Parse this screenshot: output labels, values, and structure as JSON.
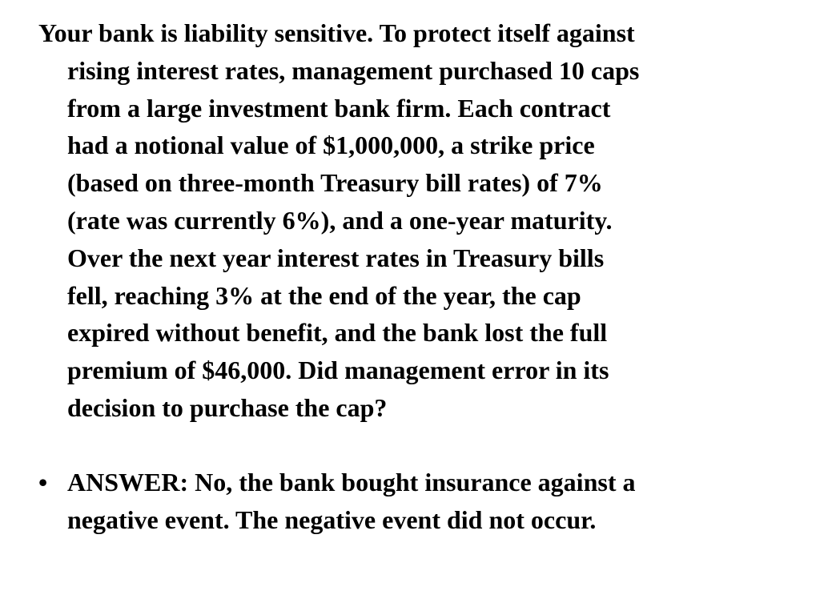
{
  "question": {
    "lines": [
      "Your bank is liability sensitive. To protect itself against",
      "rising interest rates, management purchased 10 caps",
      "from a large investment bank firm. Each contract",
      "had a notional value of $1,000,000, a strike price",
      "(based on three-month Treasury bill rates) of 7%",
      "(rate was currently 6%), and a one-year maturity.",
      "Over the next year interest rates in Treasury bills",
      "fell, reaching 3% at the end of the year, the cap",
      "expired without benefit, and the bank lost the full",
      "premium of $46,000. Did management error in its",
      "decision to purchase the cap?"
    ]
  },
  "answer": {
    "bullet": "•",
    "lines": [
      "ANSWER: No, the bank bought insurance against a",
      "negative event. The negative event did not occur."
    ]
  }
}
